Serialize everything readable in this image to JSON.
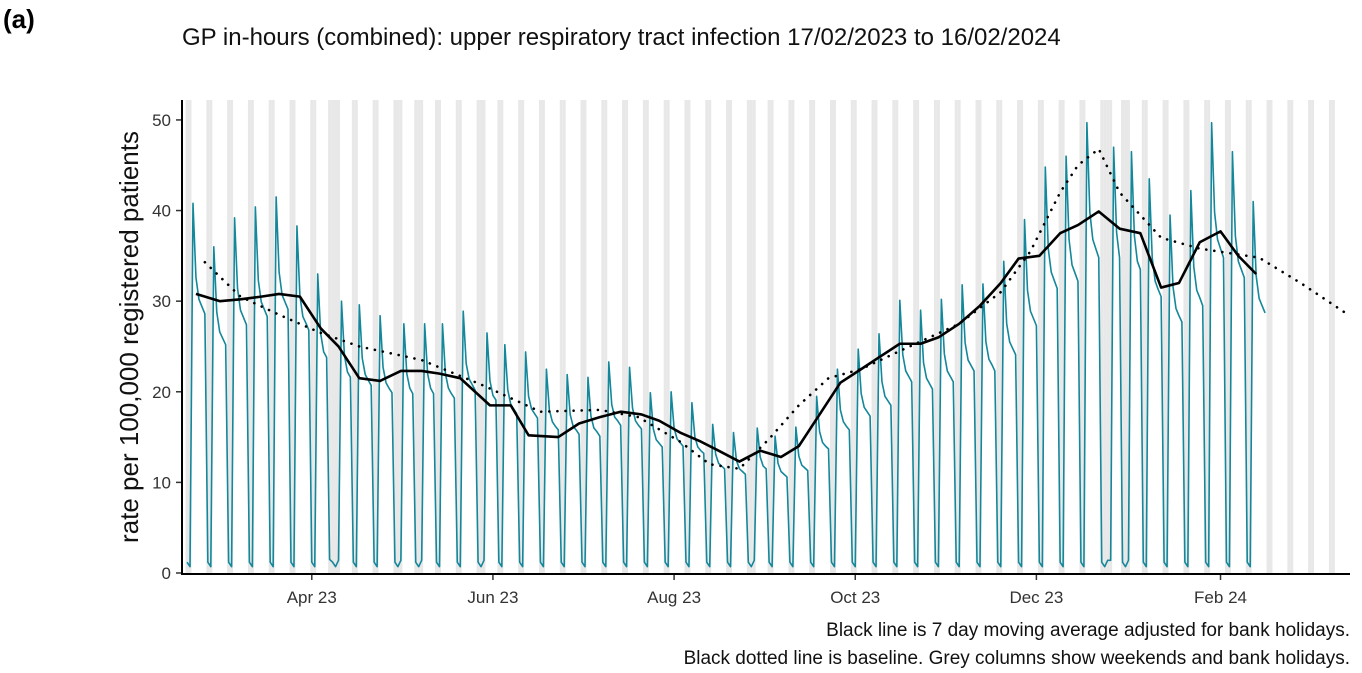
{
  "panel_label": "(a)",
  "chart_data": {
    "type": "line",
    "title": "GP in-hours (combined): upper respiratory tract infection 17/02/2023 to 16/02/2024",
    "y_label": "rate per 100,000 registered patients",
    "annotations": [
      "Black line is 7 day moving average adjusted for bank holidays.",
      "Black dotted line is baseline. Grey columns show weekends and bank holidays."
    ],
    "xlim": [
      -0.7,
      392.6
    ],
    "xticks": [
      {
        "value": 43,
        "label": "Apr 23"
      },
      {
        "value": 104,
        "label": "Jun 23"
      },
      {
        "value": 165,
        "label": "Aug 23"
      },
      {
        "value": 226,
        "label": "Oct 23"
      },
      {
        "value": 287,
        "label": "Dec 23"
      },
      {
        "value": 349,
        "label": "Feb 24"
      }
    ],
    "ylim": [
      0,
      52.2
    ],
    "yticks": [
      0,
      10,
      20,
      30,
      40,
      50
    ],
    "shaded_color": "#e8e8e8",
    "shaded_x": [
      1,
      2,
      8,
      9,
      15,
      16,
      22,
      23,
      29,
      30,
      36,
      37,
      43,
      44,
      49,
      50,
      51,
      52,
      57,
      58,
      64,
      65,
      71,
      72,
      73,
      78,
      79,
      80,
      85,
      86,
      92,
      93,
      99,
      100,
      101,
      106,
      107,
      113,
      114,
      120,
      121,
      127,
      128,
      134,
      135,
      141,
      142,
      148,
      149,
      155,
      156,
      162,
      163,
      169,
      170,
      176,
      177,
      183,
      184,
      190,
      191,
      192,
      197,
      198,
      204,
      205,
      211,
      212,
      218,
      219,
      225,
      226,
      232,
      233,
      239,
      240,
      246,
      247,
      253,
      254,
      260,
      261,
      267,
      268,
      274,
      275,
      281,
      282,
      288,
      289,
      295,
      296,
      302,
      303,
      309,
      310,
      311,
      312,
      316,
      317,
      318,
      323,
      324,
      330,
      331,
      337,
      338,
      344,
      345,
      351,
      352,
      358,
      359,
      365,
      366,
      372,
      373,
      379,
      380,
      386,
      387
    ],
    "series": [
      {
        "color": "#14879a",
        "width": 1.6,
        "linestyle": "solid",
        "x": [
          1,
          2,
          3,
          4,
          5,
          6,
          7,
          8,
          9,
          10,
          11,
          12,
          13,
          14,
          15,
          16,
          17,
          18,
          19,
          20,
          21,
          22,
          23,
          24,
          25,
          26,
          27,
          28,
          29,
          30,
          31,
          32,
          33,
          34,
          35,
          36,
          37,
          38,
          39,
          40,
          41,
          42,
          43,
          44,
          45,
          46,
          47,
          48,
          49,
          50,
          51,
          52,
          53,
          54,
          55,
          56,
          57,
          58,
          59,
          60,
          61,
          62,
          63,
          64,
          65,
          66,
          67,
          68,
          69,
          70,
          71,
          72,
          73,
          74,
          75,
          76,
          77,
          78,
          79,
          80,
          81,
          82,
          83,
          84,
          85,
          86,
          87,
          88,
          89,
          90,
          91,
          92,
          93,
          94,
          95,
          96,
          97,
          98,
          99,
          100,
          101,
          102,
          103,
          104,
          105,
          106,
          107,
          108,
          109,
          110,
          111,
          112,
          113,
          114,
          115,
          116,
          117,
          118,
          119,
          120,
          121,
          122,
          123,
          124,
          125,
          126,
          127,
          128,
          129,
          130,
          131,
          132,
          133,
          134,
          135,
          136,
          137,
          138,
          139,
          140,
          141,
          142,
          143,
          144,
          145,
          146,
          147,
          148,
          149,
          150,
          151,
          152,
          153,
          154,
          155,
          156,
          157,
          158,
          159,
          160,
          161,
          162,
          163,
          164,
          165,
          166,
          167,
          168,
          169,
          170,
          171,
          172,
          173,
          174,
          175,
          176,
          177,
          178,
          179,
          180,
          181,
          182,
          183,
          184,
          185,
          186,
          187,
          188,
          189,
          190,
          191,
          192,
          193,
          194,
          195,
          196,
          197,
          198,
          199,
          200,
          201,
          202,
          203,
          204,
          205,
          206,
          207,
          208,
          209,
          210,
          211,
          212,
          213,
          214,
          215,
          216,
          217,
          218,
          219,
          220,
          221,
          222,
          223,
          224,
          225,
          226,
          227,
          228,
          229,
          230,
          231,
          232,
          233,
          234,
          235,
          236,
          237,
          238,
          239,
          240,
          241,
          242,
          243,
          244,
          245,
          246,
          247,
          248,
          249,
          250,
          251,
          252,
          253,
          254,
          255,
          256,
          257,
          258,
          259,
          260,
          261,
          262,
          263,
          264,
          265,
          266,
          267,
          268,
          269,
          270,
          271,
          272,
          273,
          274,
          275,
          276,
          277,
          278,
          279,
          280,
          281,
          282,
          283,
          284,
          285,
          286,
          287,
          288,
          289,
          290,
          291,
          292,
          293,
          294,
          295,
          296,
          297,
          298,
          299,
          300,
          301,
          302,
          303,
          304,
          305,
          306,
          307,
          308,
          309,
          310,
          311,
          312,
          313,
          314,
          315,
          316,
          317,
          318,
          319,
          320,
          321,
          322,
          323,
          324,
          325,
          326,
          327,
          328,
          329,
          330,
          331,
          332,
          333,
          334,
          335,
          336,
          337,
          338,
          339,
          340,
          341,
          342,
          343,
          344,
          345,
          346,
          347,
          348,
          349,
          350,
          351,
          352,
          353,
          354,
          355,
          356,
          357,
          358,
          359,
          360,
          361,
          362,
          363,
          364
        ],
        "values": [
          1.2,
          0.7,
          40.8,
          32.6,
          30.2,
          29.4,
          28.6,
          1.2,
          0.7,
          36,
          28.8,
          26.6,
          25.9,
          25.2,
          1.2,
          0.7,
          39.2,
          31.4,
          29.0,
          28.2,
          27.4,
          1.2,
          0.7,
          40.4,
          32.3,
          29.9,
          29.1,
          28.3,
          1.2,
          0.7,
          41.5,
          33.2,
          30.7,
          29.9,
          29.1,
          1.2,
          0.7,
          38.3,
          30.6,
          28.3,
          27.6,
          26.8,
          1.2,
          0.7,
          33.0,
          26.4,
          24.4,
          23.8,
          1.5,
          1.2,
          0.7,
          1.4,
          30.0,
          24.0,
          22.2,
          21.6,
          1.2,
          0.7,
          29.6,
          23.7,
          21.9,
          21.3,
          20.7,
          1.2,
          0.7,
          28.4,
          22.7,
          21.0,
          20.4,
          19.9,
          1.2,
          0.7,
          1.4,
          27.5,
          22.0,
          20.4,
          19.8,
          1.2,
          0.7,
          1.4,
          27.5,
          22.0,
          20.4,
          19.8,
          1.2,
          0.7,
          27.5,
          22.0,
          20.4,
          19.8,
          19.3,
          1.2,
          0.7,
          28.9,
          23.1,
          21.4,
          20.8,
          20.2,
          1.2,
          0.7,
          1.4,
          26.5,
          21.2,
          19.6,
          19.1,
          1.2,
          0.7,
          25.2,
          20.2,
          18.6,
          18.1,
          17.6,
          1.2,
          0.7,
          24.4,
          19.5,
          18.1,
          17.6,
          17.1,
          1.2,
          0.7,
          22.5,
          18.0,
          16.7,
          16.2,
          15.8,
          1.2,
          0.7,
          21.9,
          17.5,
          16.2,
          15.8,
          15.3,
          1.2,
          0.7,
          21.6,
          17.3,
          16.0,
          15.6,
          15.1,
          1.2,
          0.7,
          23.3,
          18.6,
          17.2,
          16.8,
          16.3,
          1.2,
          0.7,
          22.7,
          18.2,
          16.8,
          16.3,
          15.9,
          1.2,
          0.7,
          19.9,
          15.9,
          14.7,
          14.3,
          13.9,
          1.2,
          0.7,
          20.0,
          16.0,
          14.8,
          14.4,
          14.0,
          1.2,
          0.7,
          18.8,
          15.0,
          13.9,
          13.5,
          13.2,
          1.2,
          0.7,
          16.4,
          13.1,
          12.1,
          11.8,
          11.5,
          1.2,
          0.7,
          15.5,
          12.4,
          11.5,
          11.2,
          10.9,
          1.2,
          0.7,
          1.4,
          16.0,
          12.8,
          11.8,
          11.5,
          1.2,
          0.7,
          15.1,
          12.1,
          11.2,
          10.9,
          10.6,
          1.2,
          0.7,
          16.1,
          12.9,
          11.9,
          11.6,
          11.3,
          1.2,
          0.7,
          19.5,
          15.6,
          14.4,
          14.0,
          13.7,
          1.2,
          0.7,
          22.5,
          18.0,
          16.7,
          16.2,
          15.8,
          1.2,
          0.7,
          24.7,
          19.8,
          18.3,
          17.8,
          17.3,
          1.2,
          0.7,
          26.4,
          21.1,
          19.5,
          19.0,
          18.5,
          1.2,
          0.7,
          30.1,
          24.1,
          22.3,
          21.7,
          21.1,
          1.2,
          0.7,
          29.0,
          23.2,
          21.5,
          20.9,
          20.3,
          1.2,
          0.7,
          30.2,
          24.2,
          22.3,
          21.7,
          21.1,
          1.2,
          0.7,
          31.8,
          25.4,
          23.5,
          22.9,
          22.3,
          1.2,
          0.7,
          31.9,
          25.5,
          23.6,
          23.0,
          22.3,
          1.2,
          0.7,
          34.4,
          27.5,
          25.5,
          24.8,
          24.1,
          1.2,
          0.7,
          39.0,
          31.2,
          28.9,
          28.1,
          27.3,
          1.2,
          0.7,
          44.8,
          35.8,
          33.2,
          32.3,
          31.4,
          1.2,
          0.7,
          46.0,
          36.8,
          34.0,
          33.1,
          32.2,
          1.2,
          0.7,
          49.7,
          39.8,
          36.8,
          35.8,
          34.8,
          1.2,
          0.7,
          1.4,
          1.4,
          47.0,
          37.6,
          34.8,
          1.2,
          0.7,
          1.4,
          46.5,
          37.2,
          34.4,
          33.5,
          1.2,
          0.7,
          43.5,
          34.8,
          32.2,
          31.3,
          30.5,
          1.2,
          0.7,
          39.5,
          31.6,
          29.2,
          28.4,
          27.7,
          1.2,
          0.7,
          42.2,
          33.8,
          31.2,
          30.4,
          29.5,
          1.2,
          0.7,
          49.7,
          39.8,
          36.8,
          35.8,
          34.8,
          1.2,
          0.7,
          46.5,
          37.2,
          34.4,
          33.5,
          32.6,
          1.2,
          0.7,
          41.0,
          32.8,
          30.3,
          29.5,
          28.7
        ]
      },
      {
        "color": "#000000",
        "width": 2.6,
        "linestyle": "solid",
        "x": [
          4,
          12,
          19,
          26,
          32,
          39,
          46,
          52,
          59,
          66,
          73,
          80,
          86,
          93,
          103,
          110,
          116,
          126,
          133,
          140,
          147,
          154,
          160,
          167,
          174,
          180,
          187,
          194,
          201,
          207,
          214,
          221,
          228,
          234,
          241,
          248,
          254,
          261,
          268,
          275,
          281,
          288,
          295,
          301,
          308,
          315,
          322,
          329,
          335,
          342,
          349,
          355,
          361
        ],
        "values": [
          30.8,
          30,
          30.2,
          30.5,
          30.8,
          30.5,
          27,
          25,
          21.5,
          21.2,
          22.3,
          22.3,
          22,
          21.5,
          18.5,
          18.5,
          15.2,
          15,
          16.5,
          17.2,
          17.8,
          17.5,
          16.8,
          15.5,
          14.5,
          13.5,
          12.3,
          13.5,
          12.8,
          14,
          17.5,
          21,
          22.5,
          23.8,
          25.3,
          25.3,
          26,
          27.5,
          29.5,
          32,
          34.7,
          35,
          37.5,
          38.4,
          39.9,
          38,
          37.5,
          31.5,
          32,
          36.5,
          37.7,
          35,
          33
        ]
      },
      {
        "color": "#000000",
        "width": 2.6,
        "linestyle": "dotted",
        "x": [
          7,
          19,
          32,
          46,
          59,
          80,
          100,
          120,
          140,
          153,
          167,
          177,
          187,
          197,
          207,
          217,
          228,
          241,
          261,
          275,
          285,
          295,
          301,
          308,
          315,
          329,
          342,
          362,
          376,
          392
        ],
        "values": [
          34.3,
          30.5,
          28.5,
          26.5,
          25,
          23.5,
          20.8,
          17.8,
          18,
          17.2,
          14.5,
          12,
          11.5,
          14.8,
          18.5,
          21.5,
          22.5,
          24.5,
          27.5,
          31,
          35.5,
          42,
          45,
          46.8,
          42,
          37,
          35.8,
          34.8,
          32,
          28.5
        ]
      }
    ]
  }
}
